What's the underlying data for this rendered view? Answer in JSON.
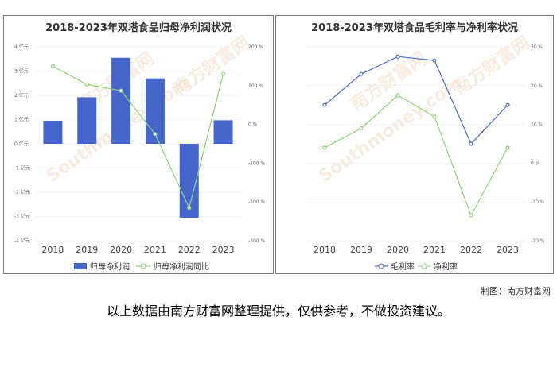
{
  "credit": "制图：南方财富网",
  "disclaimer": "以上数据由南方财富网整理提供，仅供参考，不做投资建议。",
  "watermark": [
    "南方财富网",
    "Southmoney.com"
  ],
  "colors": {
    "bar": "#4466cc",
    "line_green": "#8fd47a",
    "line_blue": "#4c6ccc",
    "grid": "#e6e6e6",
    "watermark": "#f3ddc8"
  },
  "chart_data": [
    {
      "type": "bar",
      "title": "2018-2023年双塔食品归母净利润状况",
      "categories": [
        "2018",
        "2019",
        "2020",
        "2021",
        "2022",
        "2023"
      ],
      "left_axis": {
        "ticks": [
          "4 亿元",
          "3 亿元",
          "2 亿元",
          "1 亿元",
          "0 亿元",
          "-1 亿元",
          "-2 亿元",
          "-3 亿元",
          "-4 亿元"
        ],
        "ylim": [
          -4,
          4
        ]
      },
      "right_axis": {
        "ticks": [
          "200 %",
          "100 %",
          "0 %",
          "-100 %",
          "-200 %",
          "-300 %"
        ],
        "ylim": [
          -300,
          200
        ]
      },
      "series": [
        {
          "name": "归母净利润",
          "type": "bar",
          "axis": "left",
          "values": [
            0.95,
            1.92,
            3.55,
            2.7,
            -3.05,
            0.97
          ]
        },
        {
          "name": "归母净利润同比",
          "type": "line",
          "axis": "right",
          "values": [
            150,
            103,
            87,
            -25,
            -215,
            130
          ]
        }
      ],
      "legend": "bottom"
    },
    {
      "type": "line",
      "title": "2018-2023年双塔食品毛利率与净利率状况",
      "categories": [
        "2018",
        "2019",
        "2020",
        "2021",
        "2022",
        "2023"
      ],
      "axis": {
        "ticks": [
          "30 %",
          "20 %",
          "10 %",
          "0 %",
          "-10 %",
          "-20 %"
        ],
        "ylim": [
          -20,
          30
        ]
      },
      "series": [
        {
          "name": "毛利率",
          "values": [
            15,
            23,
            27.5,
            26.5,
            5,
            15
          ]
        },
        {
          "name": "净利率",
          "values": [
            4,
            9,
            17.5,
            12,
            -13.5,
            4
          ]
        }
      ],
      "legend": "bottom"
    }
  ]
}
